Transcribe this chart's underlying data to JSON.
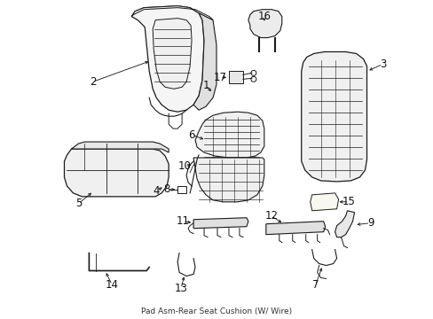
{
  "bg_color": "#ffffff",
  "fig_width": 4.89,
  "fig_height": 3.6,
  "dpi": 100,
  "line_color": "#1a1a1a",
  "text_color": "#111111",
  "font_size": 8.5
}
